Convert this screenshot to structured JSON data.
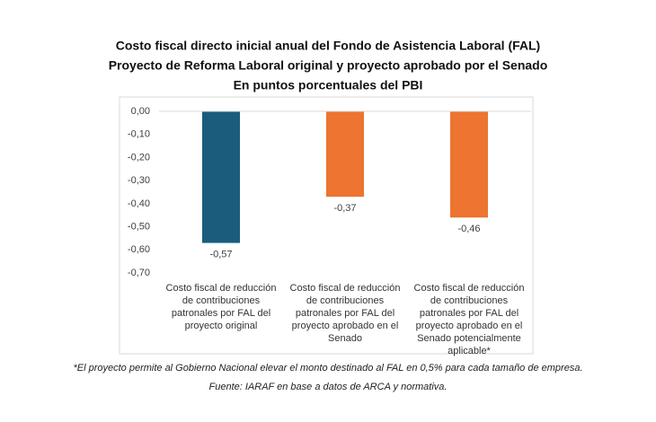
{
  "chart_data": {
    "type": "bar",
    "title": "Costo fiscal directo inicial anual del Fondo de Asistencia Laboral (FAL)",
    "subtitle": "Proyecto de Reforma Laboral original y proyecto aprobado por el Senado",
    "units": "En puntos porcentuales del PBI",
    "categories": [
      "Costo fiscal de reducción de contribuciones patronales por FAL del proyecto original",
      "Costo fiscal de reducción de contribuciones patronales por FAL del proyecto aprobado en el Senado",
      "Costo fiscal de reducción de contribuciones patronales por FAL del proyecto aprobado en el Senado potencialmente aplicable*"
    ],
    "values": [
      -0.57,
      -0.37,
      -0.46
    ],
    "value_labels": [
      "-0,57",
      "-0,37",
      "-0,46"
    ],
    "colors": [
      "#1b5b7c",
      "#ed7431",
      "#ed7431"
    ],
    "ylim": [
      -0.7,
      0
    ],
    "yticks": [
      {
        "value": 0,
        "label": "0,00"
      },
      {
        "value": -0.1,
        "label": "-0,10"
      },
      {
        "value": -0.2,
        "label": "-0,20"
      },
      {
        "value": -0.3,
        "label": "-0,30"
      },
      {
        "value": -0.4,
        "label": "-0,40"
      },
      {
        "value": -0.5,
        "label": "-0,50"
      },
      {
        "value": -0.6,
        "label": "-0,60"
      },
      {
        "value": -0.7,
        "label": "-0,70"
      }
    ],
    "grid": false,
    "footnote": "*El proyecto permite al Gobierno Nacional elevar el monto destinado al FAL en 0,5% para cada tamaño de empresa.",
    "source": "Fuente: IARAF en base a datos de ARCA y normativa."
  }
}
